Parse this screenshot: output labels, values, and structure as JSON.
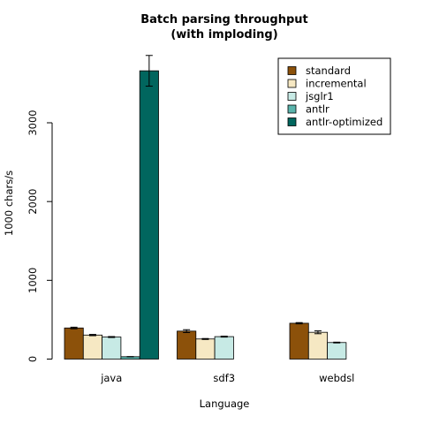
{
  "chart_data": {
    "type": "bar",
    "title_line1": "Batch parsing throughput",
    "title_line2": "(with imploding)",
    "xlabel": "Language",
    "ylabel": "1000 chars/s",
    "ylim": [
      0,
      3900
    ],
    "yticks": [
      0,
      1000,
      2000,
      3000
    ],
    "legend_position": "top-right",
    "categories": [
      "java",
      "sdf3",
      "webdsl"
    ],
    "series": [
      {
        "name": "standard",
        "color": "#8c510a",
        "values": [
          395,
          355,
          455
        ],
        "errors": [
          10,
          18,
          8
        ]
      },
      {
        "name": "incremental",
        "color": "#f6e8c3",
        "values": [
          305,
          255,
          340
        ],
        "errors": [
          8,
          6,
          18
        ]
      },
      {
        "name": "jsglr1",
        "color": "#c7eae5",
        "values": [
          280,
          285,
          210
        ],
        "errors": [
          6,
          6,
          5
        ]
      },
      {
        "name": "antlr",
        "color": "#5ab4ac",
        "values": [
          30,
          null,
          null
        ],
        "errors": [
          2,
          null,
          null
        ]
      },
      {
        "name": "antlr-optimized",
        "color": "#01665e",
        "values": [
          3660,
          null,
          null
        ],
        "errors": [
          195,
          null,
          null
        ]
      }
    ]
  }
}
